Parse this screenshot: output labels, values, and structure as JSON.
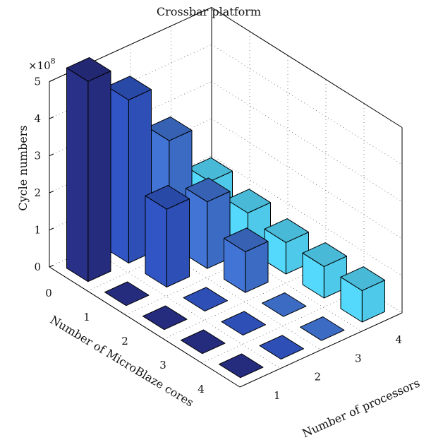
{
  "chart_data": {
    "type": "bar3d",
    "title": "Crossbar platform",
    "zlabel": "Cycle numbers",
    "zlabel_multiplier": "×10",
    "zlabel_exponent": "8",
    "z_scale": 100000000,
    "zlim": [
      0,
      5
    ],
    "z_ticks": [
      "0",
      "1",
      "2",
      "3",
      "4",
      "5"
    ],
    "xlabel": "Number of MicroBlaze cores",
    "x_categories": [
      "0",
      "1",
      "2",
      "3",
      "4"
    ],
    "ylabel": "Number of processors",
    "y_categories": [
      "1",
      "2",
      "3",
      "4"
    ],
    "grid": true,
    "values": [
      [
        5.4,
        4.4,
        2.8,
        1.2
      ],
      [
        0,
        2.1,
        1.8,
        1.0
      ],
      [
        0,
        0,
        1.1,
        0.85
      ],
      [
        0,
        0,
        0,
        0.85
      ],
      [
        0,
        0,
        0,
        0.85
      ]
    ],
    "series_colors": [
      "#262c7d",
      "#2d4fb6",
      "#3c6bc4",
      "#4ec9e9"
    ]
  }
}
